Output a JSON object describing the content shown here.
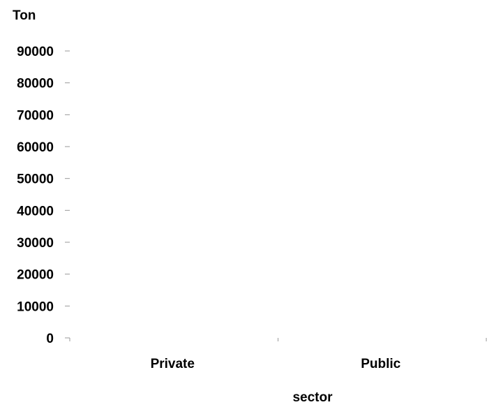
{
  "chart_data": {
    "type": "bar",
    "title": "",
    "xlabel": "sector",
    "ylabel": "Ton",
    "categories": [
      "Private",
      "Public"
    ],
    "series": [
      {
        "values": [
          0,
          0
        ]
      }
    ],
    "ylim": [
      0,
      90000
    ],
    "yticks": [
      0,
      10000,
      20000,
      30000,
      40000,
      50000,
      60000,
      70000,
      80000,
      90000
    ],
    "grid": false,
    "legend": "none",
    "colors": {
      "text": "#000000",
      "tick": "#999999",
      "bar": "#4a7ab5"
    }
  }
}
